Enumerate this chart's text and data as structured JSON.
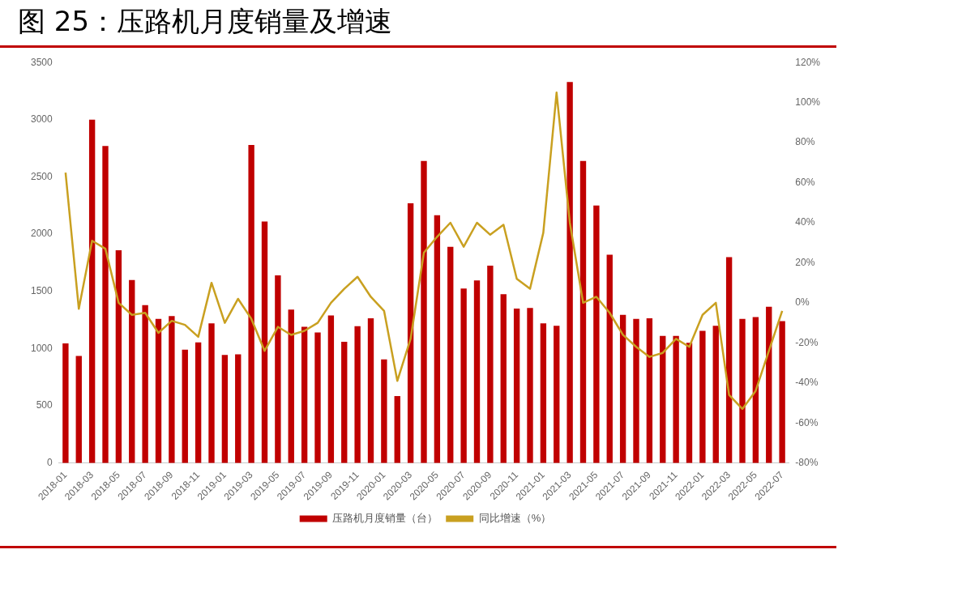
{
  "chart_data": {
    "type": "bar",
    "title": "图 25：压路机月度销量及增速",
    "categories": [
      "2018-01",
      null,
      "2018-03",
      null,
      "2018-05",
      null,
      "2018-07",
      null,
      "2018-09",
      null,
      "2018-11",
      null,
      "2019-01",
      null,
      "2019-03",
      null,
      "2019-05",
      null,
      "2019-07",
      null,
      "2019-09",
      null,
      "2019-11",
      null,
      "2020-01",
      null,
      "2020-03",
      null,
      "2020-05",
      null,
      "2020-07",
      null,
      "2020-09",
      null,
      "2020-11",
      null,
      "2021-01",
      null,
      "2021-03",
      null,
      "2021-05",
      null,
      "2021-07",
      null,
      "2021-09",
      null,
      "2021-11",
      null,
      "2022-01",
      null,
      "2022-03",
      null,
      "2022-05",
      null,
      "2022-07"
    ],
    "series": [
      {
        "name": "压路机月度销量（台）",
        "color": "#c00000",
        "values": [
          1045,
          935,
          3000,
          2770,
          1860,
          1600,
          1380,
          1260,
          1285,
          990,
          1055,
          1220,
          945,
          950,
          2780,
          2110,
          1640,
          1340,
          1190,
          1140,
          1290,
          1060,
          1195,
          1265,
          905,
          585,
          2270,
          2640,
          2165,
          1890,
          1525,
          1595,
          1725,
          1475,
          1350,
          1355,
          1220,
          1200,
          3330,
          2640,
          2250,
          1820,
          1295,
          1260,
          1265,
          1110,
          1110,
          1050,
          1155,
          1200,
          1800,
          1260,
          1275,
          1365,
          1240
        ]
      },
      {
        "name": "同比增速（%）",
        "type": "line",
        "axis": "y2",
        "color": "#c9a020",
        "values": [
          65,
          -3,
          31,
          27,
          0,
          -6,
          -5,
          -15,
          -9,
          -11,
          -17,
          10,
          -10,
          2,
          -8,
          -24,
          -12,
          -16,
          -14,
          -10,
          0,
          7,
          13,
          3,
          -4,
          -39,
          -18,
          25,
          33,
          40,
          28,
          40,
          34,
          39,
          12,
          7,
          35,
          105,
          40,
          0,
          3,
          -5,
          -16,
          -22,
          -27,
          -25,
          -18,
          -22,
          -6,
          0,
          -46,
          -53,
          -44,
          -24,
          -4
        ]
      }
    ],
    "ylim": [
      0,
      3500
    ],
    "yticks": [
      0,
      500,
      1000,
      1500,
      2000,
      2500,
      3000,
      3500
    ],
    "y2lim": [
      -80,
      120
    ],
    "y2ticks": [
      {
        "value": -80,
        "label": "-80%"
      },
      {
        "value": -60,
        "label": "-60%"
      },
      {
        "value": -40,
        "label": "-40%"
      },
      {
        "value": -20,
        "label": "-20%"
      },
      {
        "value": 0,
        "label": "0%"
      },
      {
        "value": 20,
        "label": "20%"
      },
      {
        "value": 40,
        "label": "40%"
      },
      {
        "value": 60,
        "label": "60%"
      },
      {
        "value": 80,
        "label": "80%"
      },
      {
        "value": 100,
        "label": "100%"
      },
      {
        "value": 120,
        "label": "120%"
      }
    ],
    "grid": false,
    "legend": "bottom",
    "marker": "none",
    "line_style": "solid"
  }
}
